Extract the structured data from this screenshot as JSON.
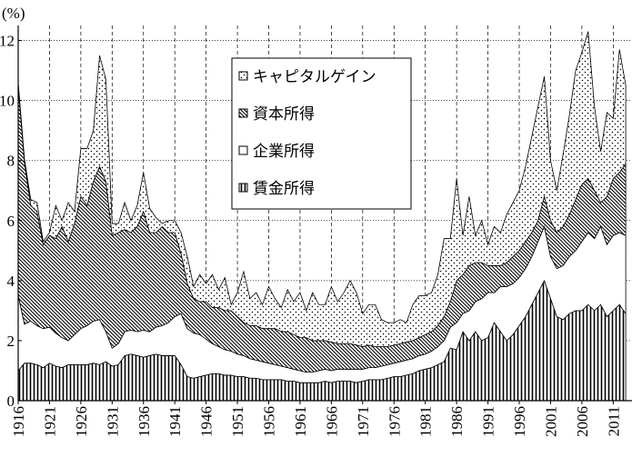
{
  "chart_data": {
    "type": "stacked-area",
    "y_label": "(%)",
    "x": [
      1916,
      1917,
      1918,
      1919,
      1920,
      1921,
      1922,
      1923,
      1924,
      1925,
      1926,
      1927,
      1928,
      1929,
      1930,
      1931,
      1932,
      1933,
      1934,
      1935,
      1936,
      1937,
      1938,
      1939,
      1940,
      1941,
      1942,
      1943,
      1944,
      1945,
      1946,
      1947,
      1948,
      1949,
      1950,
      1951,
      1952,
      1953,
      1954,
      1955,
      1956,
      1957,
      1958,
      1959,
      1960,
      1961,
      1962,
      1963,
      1964,
      1965,
      1966,
      1967,
      1968,
      1969,
      1970,
      1971,
      1972,
      1973,
      1974,
      1975,
      1976,
      1977,
      1978,
      1979,
      1980,
      1981,
      1982,
      1983,
      1984,
      1985,
      1986,
      1987,
      1988,
      1989,
      1990,
      1991,
      1992,
      1993,
      1994,
      1995,
      1996,
      1997,
      1998,
      1999,
      2000,
      2001,
      2002,
      2003,
      2004,
      2005,
      2006,
      2007,
      2008,
      2009,
      2010,
      2011,
      2012,
      2013
    ],
    "series": [
      {
        "name": "賃金所得",
        "color": "#000000",
        "hatch": "vertical",
        "values": [
          1.0,
          1.25,
          1.25,
          1.2,
          1.1,
          1.25,
          1.15,
          1.1,
          1.2,
          1.2,
          1.2,
          1.2,
          1.25,
          1.2,
          1.3,
          1.15,
          1.2,
          1.5,
          1.55,
          1.5,
          1.45,
          1.5,
          1.55,
          1.5,
          1.5,
          1.5,
          1.2,
          0.8,
          0.75,
          0.8,
          0.85,
          0.9,
          0.9,
          0.85,
          0.85,
          0.8,
          0.8,
          0.75,
          0.75,
          0.7,
          0.7,
          0.7,
          0.7,
          0.65,
          0.65,
          0.6,
          0.6,
          0.6,
          0.6,
          0.65,
          0.6,
          0.65,
          0.65,
          0.65,
          0.6,
          0.65,
          0.7,
          0.7,
          0.7,
          0.75,
          0.8,
          0.8,
          0.85,
          0.9,
          1.0,
          1.05,
          1.1,
          1.2,
          1.3,
          1.75,
          1.7,
          2.3,
          2.0,
          2.3,
          2.0,
          2.1,
          2.6,
          2.3,
          2.0,
          2.2,
          2.5,
          2.8,
          3.2,
          3.6,
          4.0,
          3.4,
          2.8,
          2.7,
          2.9,
          3.0,
          3.0,
          3.2,
          3.0,
          3.2,
          2.8,
          3.0,
          3.2,
          2.9
        ]
      },
      {
        "name": "企業所得",
        "color": "#000000",
        "hatch": "none",
        "values": [
          2.5,
          1.3,
          1.4,
          1.3,
          1.3,
          1.2,
          1.1,
          1.0,
          0.8,
          1.0,
          1.2,
          1.3,
          1.4,
          1.5,
          1.0,
          0.6,
          0.7,
          0.8,
          0.8,
          0.8,
          0.9,
          0.8,
          0.9,
          1.0,
          1.1,
          1.3,
          1.7,
          1.6,
          1.5,
          1.4,
          1.2,
          1.0,
          0.9,
          0.85,
          0.8,
          0.75,
          0.7,
          0.65,
          0.6,
          0.6,
          0.55,
          0.5,
          0.45,
          0.45,
          0.4,
          0.4,
          0.35,
          0.35,
          0.4,
          0.4,
          0.4,
          0.4,
          0.4,
          0.4,
          0.45,
          0.4,
          0.4,
          0.4,
          0.45,
          0.45,
          0.45,
          0.5,
          0.5,
          0.5,
          0.5,
          0.5,
          0.55,
          0.6,
          0.7,
          0.7,
          0.9,
          0.6,
          1.0,
          1.0,
          1.4,
          1.5,
          1.0,
          1.5,
          1.8,
          1.7,
          1.6,
          1.6,
          1.6,
          1.7,
          1.8,
          1.4,
          1.6,
          1.8,
          1.9,
          2.0,
          2.3,
          2.4,
          2.4,
          2.6,
          2.4,
          2.5,
          2.4,
          2.6
        ]
      },
      {
        "name": "資本所得",
        "color": "#000000",
        "hatch": "diagonal",
        "values": [
          7.0,
          5.4,
          3.85,
          3.8,
          2.8,
          3.05,
          3.15,
          3.7,
          3.3,
          3.7,
          4.4,
          4.0,
          4.65,
          5.1,
          5.0,
          3.75,
          3.7,
          3.4,
          3.25,
          3.5,
          3.95,
          3.3,
          3.15,
          3.3,
          3.0,
          2.8,
          2.0,
          1.5,
          1.15,
          1.1,
          1.25,
          1.2,
          1.3,
          1.3,
          1.35,
          1.25,
          1.1,
          1.1,
          1.15,
          1.1,
          1.15,
          1.2,
          1.15,
          1.2,
          1.15,
          1.1,
          1.15,
          1.05,
          1.0,
          0.95,
          0.95,
          0.85,
          0.85,
          0.85,
          0.8,
          0.75,
          0.75,
          0.7,
          0.65,
          0.6,
          0.6,
          0.6,
          0.6,
          0.6,
          0.6,
          0.65,
          0.65,
          0.7,
          0.8,
          0.85,
          1.4,
          1.3,
          1.5,
          1.3,
          1.2,
          0.9,
          0.9,
          0.7,
          0.8,
          0.9,
          0.9,
          0.9,
          0.8,
          0.7,
          1.0,
          1.2,
          1.2,
          1.3,
          1.4,
          1.7,
          1.9,
          1.8,
          1.6,
          0.8,
          1.6,
          1.9,
          2.0,
          2.4
        ]
      },
      {
        "name": "キャピタルゲイン",
        "color": "#000000",
        "hatch": "dots",
        "values": [
          0.1,
          0.1,
          0.2,
          0.3,
          0.1,
          0.1,
          1.1,
          0.2,
          1.3,
          0.4,
          1.6,
          1.9,
          1.7,
          3.7,
          3.4,
          0.4,
          0.3,
          0.9,
          0.4,
          0.7,
          1.3,
          0.8,
          0.5,
          0.1,
          0.4,
          0.4,
          0.7,
          0.9,
          0.4,
          0.9,
          0.6,
          1.1,
          0.6,
          1.1,
          0.2,
          0.8,
          1.7,
          0.9,
          1.1,
          0.8,
          1.4,
          1.0,
          0.8,
          1.4,
          1.1,
          1.5,
          0.9,
          1.6,
          1.2,
          1.2,
          1.85,
          1.4,
          1.7,
          2.1,
          1.75,
          1.1,
          1.35,
          1.4,
          0.9,
          0.8,
          0.75,
          0.8,
          0.65,
          1.2,
          1.4,
          1.3,
          1.3,
          1.7,
          2.6,
          2.1,
          3.4,
          1.3,
          2.3,
          0.9,
          1.4,
          0.7,
          1.3,
          1.1,
          1.6,
          1.8,
          2.0,
          2.5,
          3.2,
          3.8,
          4.0,
          2.0,
          1.4,
          2.4,
          3.3,
          4.3,
          4.4,
          4.9,
          2.8,
          1.7,
          2.8,
          2.0,
          4.1,
          2.6
        ]
      }
    ],
    "legend_order": [
      3,
      2,
      1,
      0
    ],
    "xlim": [
      1916,
      2014
    ],
    "xticks": [
      1916,
      1921,
      1926,
      1931,
      1936,
      1941,
      1946,
      1951,
      1956,
      1961,
      1966,
      1971,
      1976,
      1981,
      1986,
      1991,
      1996,
      2001,
      2006,
      2011
    ],
    "ylim": [
      0,
      12.5
    ],
    "yticks": [
      0,
      2,
      4,
      6,
      8,
      10,
      12
    ],
    "grid": true
  }
}
